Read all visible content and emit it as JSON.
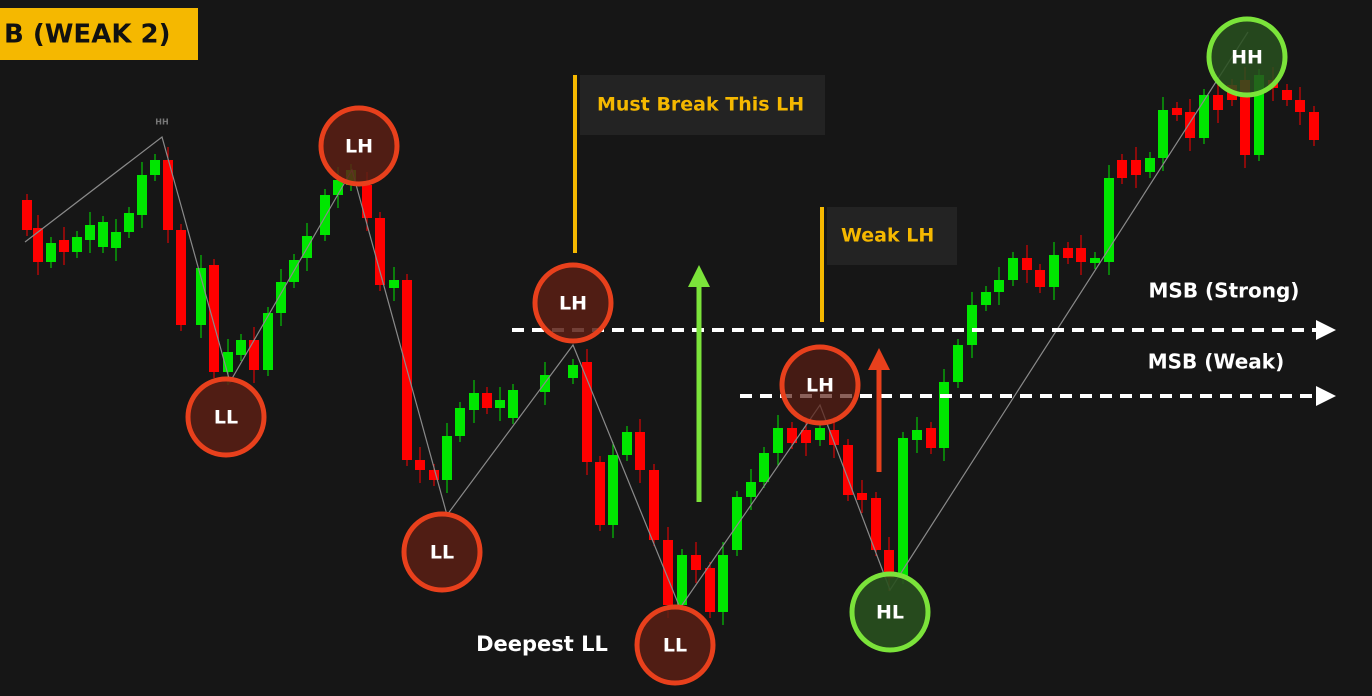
{
  "header": {
    "title": "B (WEAK 2)"
  },
  "annotations": {
    "must_break": "Must Break This LH",
    "weak_lh": "Weak LH",
    "msb_strong": "MSB (Strong)",
    "msb_weak": "MSB (Weak)",
    "deepest": "Deepest LL",
    "small_hh": "HH"
  },
  "markers": [
    {
      "label": "LL"
    },
    {
      "label": "LH"
    },
    {
      "label": "LL"
    },
    {
      "label": "LH"
    },
    {
      "label": "LL"
    },
    {
      "label": "LH"
    },
    {
      "label": "HL"
    },
    {
      "label": "HH"
    }
  ]
}
